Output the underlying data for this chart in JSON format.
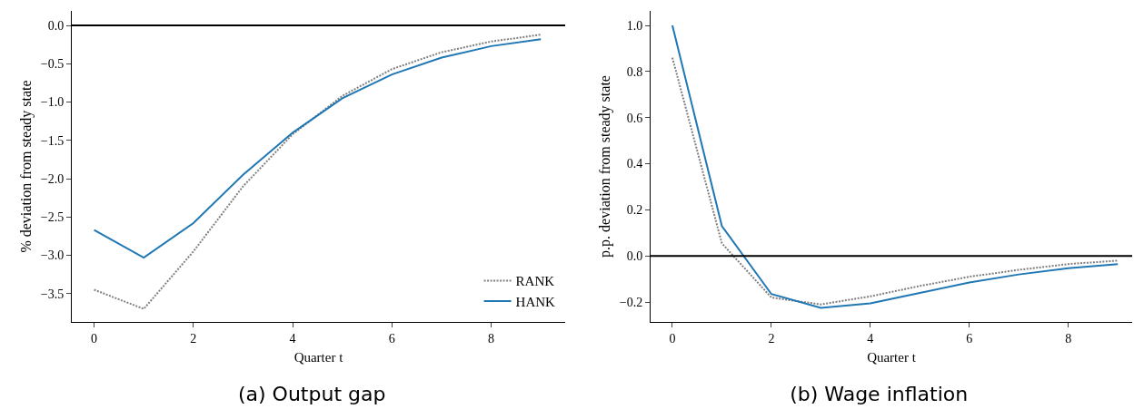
{
  "chart_data": [
    {
      "type": "line",
      "title": "(a) Output gap",
      "xlabel": "Quarter t",
      "ylabel": "% deviation from steady state",
      "x": [
        0,
        1,
        2,
        3,
        4,
        5,
        6,
        7,
        8,
        9
      ],
      "xlim": [
        -0.45,
        9.49
      ],
      "xticks": [
        0,
        2,
        4,
        6,
        8
      ],
      "ylim": [
        -3.87,
        0.19
      ],
      "yticks": [
        {
          "value": 0,
          "label": "0.0"
        },
        {
          "value": -0.5,
          "label": "−0.5"
        },
        {
          "value": -1,
          "label": "−1.0"
        },
        {
          "value": -1.5,
          "label": "−1.5"
        },
        {
          "value": -2,
          "label": "−2.0"
        },
        {
          "value": -2.5,
          "label": "−2.5"
        },
        {
          "value": -3,
          "label": "−3.0"
        },
        {
          "value": -3.5,
          "label": "−3.5"
        }
      ],
      "grid": false,
      "legend": "bottom right",
      "marker": "none",
      "series": [
        {
          "name": "RANK",
          "color": "#808080",
          "line_style": "dotted",
          "values": [
            -3.45,
            -3.7,
            -2.95,
            -2.1,
            -1.42,
            -0.92,
            -0.57,
            -0.35,
            -0.21,
            -0.12
          ]
        },
        {
          "name": "HANK",
          "color": "#1f77b4",
          "line_style": "solid",
          "values": [
            -2.67,
            -3.03,
            -2.58,
            -1.95,
            -1.4,
            -0.95,
            -0.64,
            -0.42,
            -0.27,
            -0.18
          ]
        }
      ],
      "ref_lines": [
        {
          "axis": "y",
          "value": 0,
          "color": "#000000"
        }
      ]
    },
    {
      "type": "line",
      "title": "(b) Wage inflation",
      "xlabel": "Quarter t",
      "ylabel": "p.p. deviation from steady state",
      "x": [
        0,
        1,
        2,
        3,
        4,
        5,
        6,
        7,
        8,
        9
      ],
      "xlim": [
        -0.44,
        9.29
      ],
      "xticks": [
        0,
        2,
        4,
        6,
        8
      ],
      "ylim": [
        -0.286,
        1.063
      ],
      "yticks": [
        {
          "value": 1,
          "label": "1.0"
        },
        {
          "value": 0.8,
          "label": "0.8"
        },
        {
          "value": 0.6,
          "label": "0.6"
        },
        {
          "value": 0.4,
          "label": "0.4"
        },
        {
          "value": 0.2,
          "label": "0.2"
        },
        {
          "value": 0,
          "label": "0.0"
        },
        {
          "value": -0.2,
          "label": "−0.2"
        }
      ],
      "grid": false,
      "legend": false,
      "marker": "none",
      "series": [
        {
          "color": "#808080",
          "line_style": "dotted",
          "values": [
            0.86,
            0.055,
            -0.18,
            -0.21,
            -0.175,
            -0.13,
            -0.09,
            -0.06,
            -0.035,
            -0.02
          ]
        },
        {
          "color": "#1f77b4",
          "line_style": "solid",
          "values": [
            1.0,
            0.13,
            -0.165,
            -0.225,
            -0.205,
            -0.16,
            -0.115,
            -0.08,
            -0.053,
            -0.035
          ]
        }
      ],
      "ref_lines": [
        {
          "axis": "y",
          "value": 0,
          "color": "#000000"
        }
      ]
    }
  ]
}
